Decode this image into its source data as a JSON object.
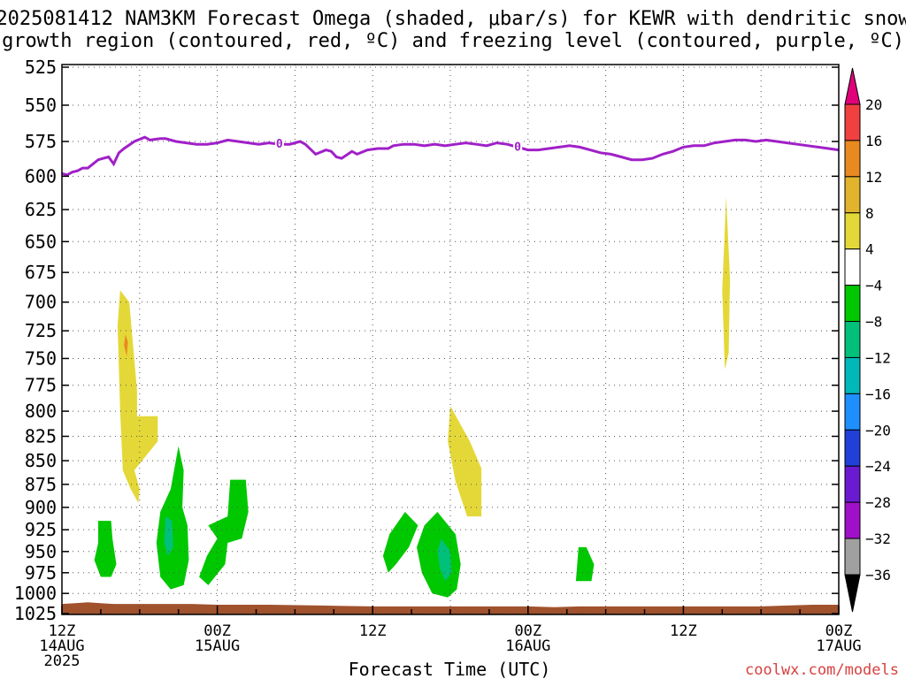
{
  "chart_data": {
    "type": "heatmap",
    "title": "2025081412 NAM3KM Forecast Omega (shaded, μbar/s) for KEWR with dendritic snow",
    "subtitle": "growth region (contoured, red, ºC) and freezing level (contoured, purple, ºC)",
    "xlabel": "Forecast Time (UTC)",
    "ylabel": "",
    "credit": "coolwx.com/models",
    "x_range_hours": [
      0,
      60
    ],
    "y_range_mb": [
      1025,
      525
    ],
    "y_scale": "log-pressure",
    "grid": true,
    "y_ticks": [
      525,
      550,
      575,
      600,
      625,
      650,
      675,
      700,
      725,
      750,
      775,
      800,
      825,
      850,
      875,
      900,
      925,
      950,
      975,
      1000,
      1025
    ],
    "x_ticks": [
      {
        "hour": 0,
        "line1": "12Z",
        "line2": "14AUG",
        "line3": "2025"
      },
      {
        "hour": 12,
        "line1": "00Z",
        "line2": "15AUG",
        "line3": ""
      },
      {
        "hour": 24,
        "line1": "12Z",
        "line2": "",
        "line3": ""
      },
      {
        "hour": 36,
        "line1": "00Z",
        "line2": "16AUG",
        "line3": ""
      },
      {
        "hour": 48,
        "line1": "12Z",
        "line2": "",
        "line3": ""
      },
      {
        "hour": 60,
        "line1": "00Z",
        "line2": "17AUG",
        "line3": ""
      }
    ],
    "colorbar": {
      "labels": [
        "20",
        "16",
        "12",
        "8",
        "4",
        "−4",
        "−8",
        "−12",
        "−16",
        "−20",
        "−24",
        "−28",
        "−32",
        "−36"
      ],
      "colors": [
        "#e0007a",
        "#f04040",
        "#e88a20",
        "#e2b32c",
        "#e4d838",
        "#ffffff",
        "#00c800",
        "#00c07a",
        "#00b8b8",
        "#1f8fff",
        "#2040d8",
        "#6a1ad0",
        "#a010c8",
        "#a0a0a0",
        "#000000"
      ]
    },
    "series": [
      {
        "name": "0",
        "color": "#a020c8",
        "kind": "freezing-level",
        "points": [
          [
            0,
            598
          ],
          [
            1,
            599
          ],
          [
            2,
            597
          ],
          [
            3,
            596
          ],
          [
            4,
            594
          ],
          [
            5,
            594
          ],
          [
            6,
            591
          ],
          [
            7,
            588
          ],
          [
            8,
            587
          ],
          [
            9,
            586
          ],
          [
            10,
            591
          ],
          [
            11,
            583
          ],
          [
            12,
            580
          ],
          [
            14,
            575
          ],
          [
            16,
            572
          ],
          [
            17,
            574
          ],
          [
            19,
            573
          ],
          [
            20,
            573
          ],
          [
            22,
            575
          ],
          [
            24,
            576
          ],
          [
            26,
            577
          ],
          [
            28,
            577
          ],
          [
            30,
            576
          ],
          [
            32,
            574
          ],
          [
            34,
            575
          ],
          [
            36,
            576
          ],
          [
            38,
            577
          ],
          [
            40,
            576
          ],
          [
            42,
            577
          ],
          [
            44,
            577
          ],
          [
            46,
            575
          ],
          [
            47,
            577
          ],
          [
            49,
            584
          ],
          [
            51,
            581
          ],
          [
            52,
            582
          ],
          [
            53,
            586
          ],
          [
            54,
            587
          ],
          [
            56,
            582
          ],
          [
            57,
            584
          ],
          [
            59,
            581
          ],
          [
            61,
            580
          ],
          [
            63,
            580
          ],
          [
            64,
            578
          ],
          [
            66,
            577
          ],
          [
            68,
            577
          ],
          [
            70,
            578
          ],
          [
            72,
            577
          ],
          [
            74,
            578
          ],
          [
            76,
            577
          ],
          [
            78,
            576
          ],
          [
            80,
            577
          ],
          [
            82,
            578
          ],
          [
            84,
            576
          ],
          [
            86,
            577
          ],
          [
            88,
            579
          ],
          [
            90,
            581
          ],
          [
            92,
            581
          ],
          [
            94,
            580
          ],
          [
            96,
            579
          ],
          [
            98,
            578
          ],
          [
            100,
            579
          ],
          [
            102,
            581
          ],
          [
            104,
            583
          ],
          [
            106,
            584
          ],
          [
            108,
            586
          ],
          [
            110,
            588
          ],
          [
            112,
            588
          ],
          [
            114,
            587
          ],
          [
            116,
            584
          ],
          [
            118,
            582
          ],
          [
            120,
            579
          ],
          [
            122,
            578
          ],
          [
            124,
            578
          ],
          [
            126,
            576
          ],
          [
            128,
            575
          ],
          [
            130,
            574
          ],
          [
            132,
            574
          ],
          [
            134,
            575
          ],
          [
            136,
            574
          ],
          [
            138,
            575
          ],
          [
            140,
            576
          ],
          [
            142,
            577
          ],
          [
            144,
            578
          ],
          [
            146,
            579
          ],
          [
            148,
            580
          ],
          [
            150,
            581
          ]
        ],
        "x_unit_note": ""
      }
    ],
    "omega_areas": [
      {
        "value_band": "4 to 8",
        "color": "#e4d838",
        "polygon_mb": [
          [
            4.5,
            690
          ],
          [
            5.2,
            700
          ],
          [
            5.8,
            780
          ],
          [
            5.8,
            805
          ],
          [
            7.4,
            805
          ],
          [
            7.4,
            830
          ],
          [
            5.6,
            860
          ],
          [
            6.0,
            880
          ],
          [
            5.9,
            895
          ],
          [
            5.3,
            880
          ],
          [
            4.7,
            860
          ],
          [
            4.5,
            800
          ],
          [
            4.3,
            720
          ]
        ]
      },
      {
        "value_band": "8 to 12",
        "color": "#e88a20",
        "polygon_mb": [
          [
            4.9,
            728
          ],
          [
            5.1,
            735
          ],
          [
            5.0,
            748
          ],
          [
            4.8,
            738
          ]
        ]
      },
      {
        "value_band": "4 to 8",
        "color": "#e4d838",
        "polygon_mb": [
          [
            30.0,
            795
          ],
          [
            31.5,
            830
          ],
          [
            32.4,
            858
          ],
          [
            32.4,
            910
          ],
          [
            31.3,
            910
          ],
          [
            30.4,
            872
          ],
          [
            29.8,
            830
          ]
        ]
      },
      {
        "value_band": "4 to 8",
        "color": "#e4d838",
        "polygon_mb": [
          [
            51.3,
            615
          ],
          [
            51.6,
            680
          ],
          [
            51.5,
            745
          ],
          [
            51.2,
            760
          ],
          [
            51.0,
            690
          ]
        ]
      },
      {
        "value_band": "-4 to -8",
        "color": "#00c800",
        "polygon_mb": [
          [
            2.8,
            915
          ],
          [
            3.8,
            915
          ],
          [
            3.9,
            935
          ],
          [
            4.2,
            965
          ],
          [
            3.8,
            980
          ],
          [
            3.0,
            980
          ],
          [
            2.5,
            960
          ],
          [
            2.8,
            940
          ]
        ]
      },
      {
        "value_band": "-4 to -8",
        "color": "#00c800",
        "polygon_mb": [
          [
            9.0,
            835
          ],
          [
            9.4,
            860
          ],
          [
            9.3,
            900
          ],
          [
            9.7,
            920
          ],
          [
            9.8,
            960
          ],
          [
            9.4,
            990
          ],
          [
            8.4,
            995
          ],
          [
            7.6,
            980
          ],
          [
            7.3,
            940
          ],
          [
            7.6,
            905
          ],
          [
            8.4,
            880
          ]
        ]
      },
      {
        "value_band": "-8 to -12",
        "color": "#00c07a",
        "polygon_mb": [
          [
            8.0,
            910
          ],
          [
            8.5,
            915
          ],
          [
            8.6,
            945
          ],
          [
            8.2,
            955
          ],
          [
            7.9,
            940
          ]
        ]
      },
      {
        "value_band": "-4 to -8",
        "color": "#00c800",
        "polygon_mb": [
          [
            13.0,
            870
          ],
          [
            14.2,
            870
          ],
          [
            14.4,
            905
          ],
          [
            13.9,
            935
          ],
          [
            12.8,
            940
          ],
          [
            12.6,
            965
          ],
          [
            11.3,
            990
          ],
          [
            10.6,
            980
          ],
          [
            11.2,
            955
          ],
          [
            12.0,
            935
          ],
          [
            11.3,
            920
          ],
          [
            12.8,
            910
          ]
        ]
      },
      {
        "value_band": "-4 to -8",
        "color": "#00c800",
        "polygon_mb": [
          [
            26.5,
            905
          ],
          [
            27.5,
            920
          ],
          [
            26.8,
            945
          ],
          [
            25.8,
            965
          ],
          [
            25.2,
            975
          ],
          [
            24.8,
            955
          ],
          [
            25.3,
            930
          ]
        ]
      },
      {
        "value_band": "-4 to -8",
        "color": "#00c800",
        "polygon_mb": [
          [
            29.0,
            905
          ],
          [
            30.4,
            930
          ],
          [
            30.8,
            965
          ],
          [
            30.5,
            995
          ],
          [
            29.8,
            1005
          ],
          [
            28.6,
            1000
          ],
          [
            27.8,
            975
          ],
          [
            27.4,
            945
          ],
          [
            28.0,
            920
          ]
        ]
      },
      {
        "value_band": "-8 to -12",
        "color": "#00c07a",
        "polygon_mb": [
          [
            29.3,
            935
          ],
          [
            30.0,
            950
          ],
          [
            30.1,
            975
          ],
          [
            29.6,
            985
          ],
          [
            29.2,
            970
          ],
          [
            29.0,
            950
          ]
        ]
      },
      {
        "value_band": "-4 to -8",
        "color": "#00c800",
        "polygon_mb": [
          [
            39.9,
            945
          ],
          [
            40.5,
            945
          ],
          [
            41.1,
            965
          ],
          [
            40.9,
            985
          ],
          [
            39.7,
            985
          ]
        ]
      }
    ],
    "ground": {
      "color": "#a0522d",
      "surface_mb": [
        [
          0,
          1013
        ],
        [
          1,
          1012
        ],
        [
          2,
          1011
        ],
        [
          3,
          1012
        ],
        [
          4,
          1013
        ],
        [
          6,
          1013
        ],
        [
          10,
          1013
        ],
        [
          12,
          1014
        ],
        [
          16,
          1014
        ],
        [
          20,
          1015
        ],
        [
          24,
          1016
        ],
        [
          30,
          1016
        ],
        [
          36,
          1016
        ],
        [
          38,
          1017
        ],
        [
          40,
          1016
        ],
        [
          48,
          1016
        ],
        [
          54,
          1016
        ],
        [
          56,
          1015
        ],
        [
          58,
          1014
        ],
        [
          60,
          1014
        ]
      ]
    }
  }
}
